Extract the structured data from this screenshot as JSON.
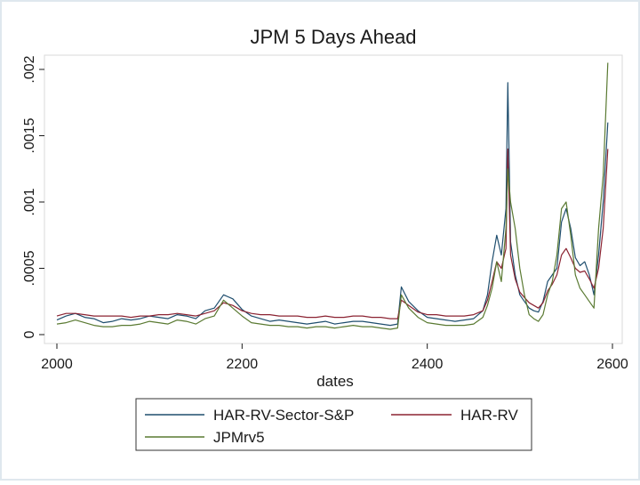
{
  "chart_data": {
    "type": "line",
    "title": "JPM 5 Days Ahead",
    "xlabel": "dates",
    "ylabel": "",
    "xlim": [
      2000,
      2600
    ],
    "ylim": [
      0,
      0.002
    ],
    "x_ticks": [
      2000,
      2200,
      2400,
      2600
    ],
    "x_tick_labels": [
      "2000",
      "2200",
      "2400",
      "2600"
    ],
    "y_ticks": [
      0,
      0.0005,
      0.001,
      0.0015,
      0.002
    ],
    "y_tick_labels": [
      "0",
      ".0005",
      ".001",
      ".0015",
      ".002"
    ],
    "grid": false,
    "legend_position": "bottom",
    "colors": {
      "HAR-RV-Sector-S&P": "#1f4e6e",
      "HAR-RV": "#8b2332",
      "JPMrv5": "#5a7a32",
      "frame": "#dfe8ee"
    },
    "series": [
      {
        "name": "HAR-RV-Sector-S&P",
        "x": [
          2000,
          2010,
          2020,
          2030,
          2040,
          2050,
          2060,
          2070,
          2080,
          2090,
          2100,
          2110,
          2120,
          2130,
          2140,
          2150,
          2160,
          2170,
          2180,
          2190,
          2200,
          2210,
          2220,
          2230,
          2240,
          2250,
          2260,
          2270,
          2280,
          2290,
          2300,
          2310,
          2320,
          2330,
          2340,
          2350,
          2360,
          2368,
          2372,
          2380,
          2390,
          2400,
          2410,
          2420,
          2430,
          2440,
          2450,
          2460,
          2465,
          2470,
          2475,
          2480,
          2485,
          2487,
          2490,
          2495,
          2500,
          2505,
          2510,
          2515,
          2520,
          2525,
          2530,
          2535,
          2540,
          2545,
          2550,
          2555,
          2560,
          2565,
          2570,
          2575,
          2580,
          2585,
          2590,
          2595
        ],
        "values": [
          0.00011,
          0.00014,
          0.00016,
          0.00013,
          0.00012,
          9e-05,
          0.0001,
          0.00012,
          0.00011,
          0.00012,
          0.00014,
          0.00013,
          0.00012,
          0.00015,
          0.00014,
          0.00012,
          0.00018,
          0.0002,
          0.0003,
          0.00027,
          0.00019,
          0.00014,
          0.00012,
          0.0001,
          0.00011,
          0.0001,
          9e-05,
          8e-05,
          9e-05,
          0.0001,
          8e-05,
          9e-05,
          0.0001,
          0.0001,
          9e-05,
          8e-05,
          7e-05,
          8e-05,
          0.00036,
          0.00025,
          0.00018,
          0.00013,
          0.00012,
          0.00011,
          0.0001,
          0.00011,
          0.00012,
          0.00018,
          0.0003,
          0.00055,
          0.00075,
          0.0006,
          0.00095,
          0.0019,
          0.0007,
          0.00045,
          0.0003,
          0.00025,
          0.0002,
          0.00018,
          0.00017,
          0.00025,
          0.0004,
          0.00045,
          0.0005,
          0.00085,
          0.00095,
          0.0008,
          0.00058,
          0.00052,
          0.00055,
          0.00045,
          0.0003,
          0.0006,
          0.001,
          0.0016
        ]
      },
      {
        "name": "HAR-RV",
        "x": [
          2000,
          2010,
          2020,
          2030,
          2040,
          2050,
          2060,
          2070,
          2080,
          2090,
          2100,
          2110,
          2120,
          2130,
          2140,
          2150,
          2160,
          2170,
          2180,
          2190,
          2200,
          2210,
          2220,
          2230,
          2240,
          2250,
          2260,
          2270,
          2280,
          2290,
          2300,
          2310,
          2320,
          2330,
          2340,
          2350,
          2360,
          2368,
          2372,
          2380,
          2390,
          2400,
          2410,
          2420,
          2430,
          2440,
          2450,
          2460,
          2465,
          2470,
          2475,
          2480,
          2485,
          2487,
          2490,
          2495,
          2500,
          2505,
          2510,
          2515,
          2520,
          2525,
          2530,
          2535,
          2540,
          2545,
          2550,
          2555,
          2560,
          2565,
          2570,
          2575,
          2580,
          2585,
          2590,
          2595
        ],
        "values": [
          0.00014,
          0.00016,
          0.00016,
          0.00015,
          0.00014,
          0.00014,
          0.00014,
          0.00014,
          0.00013,
          0.00014,
          0.00014,
          0.00015,
          0.00015,
          0.00016,
          0.00015,
          0.00014,
          0.00016,
          0.00018,
          0.00024,
          0.00022,
          0.00018,
          0.00016,
          0.00015,
          0.00015,
          0.00014,
          0.00014,
          0.00014,
          0.00013,
          0.00013,
          0.00014,
          0.00013,
          0.00013,
          0.00014,
          0.00014,
          0.00013,
          0.00013,
          0.00012,
          0.00012,
          0.00026,
          0.00022,
          0.00017,
          0.00015,
          0.00015,
          0.00014,
          0.00014,
          0.00014,
          0.00015,
          0.00018,
          0.00026,
          0.0004,
          0.00055,
          0.0005,
          0.00065,
          0.0014,
          0.0006,
          0.00042,
          0.00032,
          0.00028,
          0.00024,
          0.00022,
          0.0002,
          0.00024,
          0.00033,
          0.00038,
          0.00045,
          0.0006,
          0.00065,
          0.00058,
          0.0005,
          0.00047,
          0.00048,
          0.00042,
          0.00035,
          0.0005,
          0.0008,
          0.0014
        ]
      },
      {
        "name": "JPMrv5",
        "x": [
          2000,
          2010,
          2020,
          2030,
          2040,
          2050,
          2060,
          2070,
          2080,
          2090,
          2100,
          2110,
          2120,
          2130,
          2140,
          2150,
          2160,
          2170,
          2180,
          2190,
          2200,
          2210,
          2220,
          2230,
          2240,
          2250,
          2260,
          2270,
          2280,
          2290,
          2300,
          2310,
          2320,
          2330,
          2340,
          2350,
          2360,
          2368,
          2372,
          2380,
          2390,
          2400,
          2410,
          2420,
          2430,
          2440,
          2450,
          2460,
          2465,
          2470,
          2475,
          2480,
          2485,
          2487,
          2490,
          2495,
          2500,
          2505,
          2510,
          2515,
          2520,
          2525,
          2530,
          2535,
          2540,
          2545,
          2550,
          2555,
          2560,
          2565,
          2570,
          2575,
          2580,
          2585,
          2590,
          2595
        ],
        "values": [
          8e-05,
          9e-05,
          0.00011,
          9e-05,
          7e-05,
          6e-05,
          6e-05,
          7e-05,
          7e-05,
          8e-05,
          0.0001,
          9e-05,
          8e-05,
          0.00011,
          0.0001,
          8e-05,
          0.00012,
          0.00014,
          0.00026,
          0.0002,
          0.00014,
          9e-05,
          8e-05,
          7e-05,
          7e-05,
          6e-05,
          6e-05,
          5e-05,
          6e-05,
          6e-05,
          5e-05,
          6e-05,
          7e-05,
          6e-05,
          6e-05,
          5e-05,
          4e-05,
          5e-05,
          0.0003,
          0.0002,
          0.00013,
          9e-05,
          8e-05,
          7e-05,
          7e-05,
          7e-05,
          8e-05,
          0.00013,
          0.00022,
          0.00035,
          0.00055,
          0.0004,
          0.0008,
          0.00125,
          0.001,
          0.0008,
          0.0005,
          0.0003,
          0.00015,
          0.00012,
          0.0001,
          0.00015,
          0.0003,
          0.0004,
          0.0006,
          0.00095,
          0.001,
          0.00075,
          0.00045,
          0.00035,
          0.0003,
          0.00025,
          0.0002,
          0.0008,
          0.0012,
          0.00205
        ]
      }
    ]
  }
}
